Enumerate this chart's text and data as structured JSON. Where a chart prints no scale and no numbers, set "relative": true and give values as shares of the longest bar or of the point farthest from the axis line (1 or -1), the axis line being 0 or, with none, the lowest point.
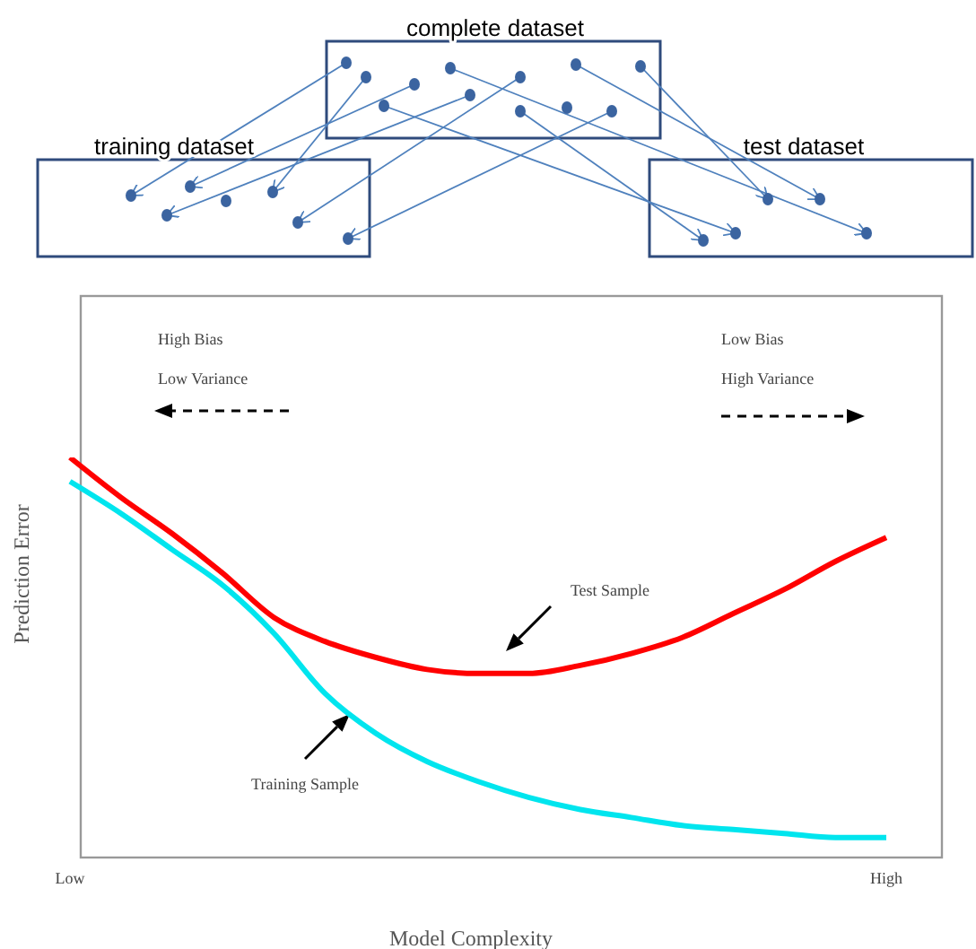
{
  "chart_data": {
    "type": "line",
    "relative": true,
    "xlabel": "Model Complexity",
    "ylabel": "Prediction Error",
    "categories": [
      "Low",
      null,
      null,
      null,
      null,
      null,
      null,
      null,
      null,
      null,
      null,
      null,
      null,
      null,
      null,
      null,
      "High"
    ],
    "series": [
      {
        "name": "Test Sample",
        "color": "#ff0000",
        "values": [
          1,
          0.9,
          0.81,
          0.71,
          0.6,
          0.54,
          0.5,
          0.47,
          0.46,
          0.46,
          0.48,
          0.51,
          0.55,
          0.61,
          0.67,
          0.74,
          0.8
        ]
      },
      {
        "name": "Training Sample",
        "color": "#00e5ee",
        "values": [
          0.94,
          0.86,
          0.77,
          0.68,
          0.56,
          0.41,
          0.31,
          0.24,
          0.19,
          0.15,
          0.12,
          0.1,
          0.08,
          0.07,
          0.06,
          0.05,
          0.05
        ]
      }
    ],
    "annotations": [
      "complete dataset",
      "training dataset",
      "test dataset",
      "High Bias",
      "Low Variance",
      "Low Bias",
      "High Variance"
    ],
    "line_style": "solid",
    "marker": "none",
    "grid": false
  }
}
